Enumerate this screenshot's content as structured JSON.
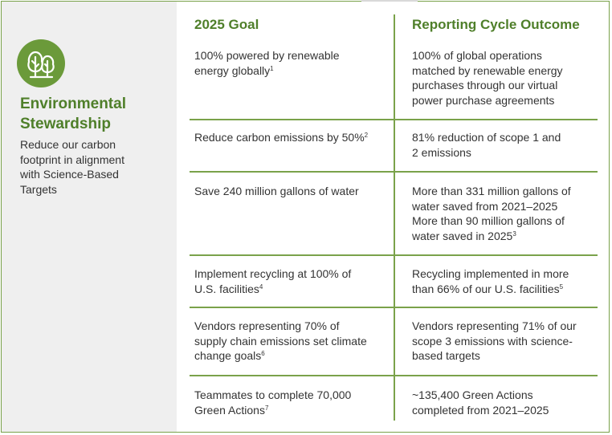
{
  "section": {
    "icon": "tree-icon",
    "title_lines": [
      "Environmental",
      "Stewardship"
    ],
    "description_lines": [
      "Reduce our carbon",
      "footprint in alignment",
      "with Science-Based",
      "Targets"
    ]
  },
  "table": {
    "headers": {
      "goal": "2025 Goal",
      "outcome": "Reporting Cycle Outcome"
    },
    "rows": [
      {
        "goal_lines": [
          [
            "100% powered by renewable",
            ""
          ],
          [
            "energy globally",
            "1"
          ]
        ],
        "outcome_lines": [
          [
            "100% of global operations",
            ""
          ],
          [
            "matched by renewable energy",
            ""
          ],
          [
            "purchases through our virtual",
            ""
          ],
          [
            "power purchase agreements",
            ""
          ]
        ]
      },
      {
        "goal_lines": [
          [
            "Reduce carbon emissions by 50%",
            "2"
          ]
        ],
        "outcome_lines": [
          [
            "81% reduction of scope 1 and",
            ""
          ],
          [
            "2 emissions",
            ""
          ]
        ]
      },
      {
        "goal_lines": [
          [
            "Save 240 million gallons of water",
            ""
          ]
        ],
        "outcome_lines": [
          [
            "More than 331 million gallons of",
            ""
          ],
          [
            "water saved from  2021–2025",
            ""
          ],
          [
            "More than 90 million gallons of",
            ""
          ],
          [
            "water saved in 2025",
            "3"
          ]
        ]
      },
      {
        "goal_lines": [
          [
            "Implement recycling at 100% of",
            ""
          ],
          [
            "U.S. facilities",
            "4"
          ]
        ],
        "outcome_lines": [
          [
            "Recycling implemented in more",
            ""
          ],
          [
            "than 66% of our U.S. facilities",
            "5"
          ]
        ]
      },
      {
        "goal_lines": [
          [
            "Vendors representing 70% of",
            ""
          ],
          [
            "supply chain emissions set climate",
            ""
          ],
          [
            "change goals",
            "6"
          ]
        ],
        "outcome_lines": [
          [
            "Vendors representing 71% of our",
            ""
          ],
          [
            "scope 3 emissions with science-",
            ""
          ],
          [
            "based targets",
            ""
          ]
        ]
      },
      {
        "goal_lines": [
          [
            "Teammates to complete 70,000",
            ""
          ],
          [
            "Green Actions",
            "7"
          ]
        ],
        "outcome_lines": [
          [
            "~135,400 Green Actions",
            ""
          ],
          [
            "completed from 2021–2025",
            ""
          ]
        ]
      }
    ]
  }
}
